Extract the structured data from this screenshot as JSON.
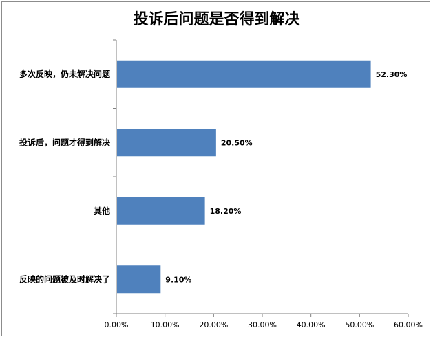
{
  "chart_data": {
    "type": "bar",
    "orientation": "horizontal",
    "title": "投诉后问题是否得到解决",
    "categories": [
      "多次反映，仍未解决问题",
      "投诉后，问题才得到解决",
      "其他",
      "反映的问题被及时解决了"
    ],
    "values": [
      52.3,
      20.5,
      18.2,
      9.1
    ],
    "data_labels": [
      "52.30%",
      "20.50%",
      "18.20%",
      "9.10%"
    ],
    "x_ticks": [
      "0.00%",
      "10.00%",
      "20.00%",
      "30.00%",
      "40.00%",
      "50.00%",
      "60.00%"
    ],
    "xlim": [
      0,
      60
    ],
    "xlabel": "",
    "ylabel": "",
    "grid": false,
    "legend": "none",
    "bar_color": "#4f81bd"
  }
}
